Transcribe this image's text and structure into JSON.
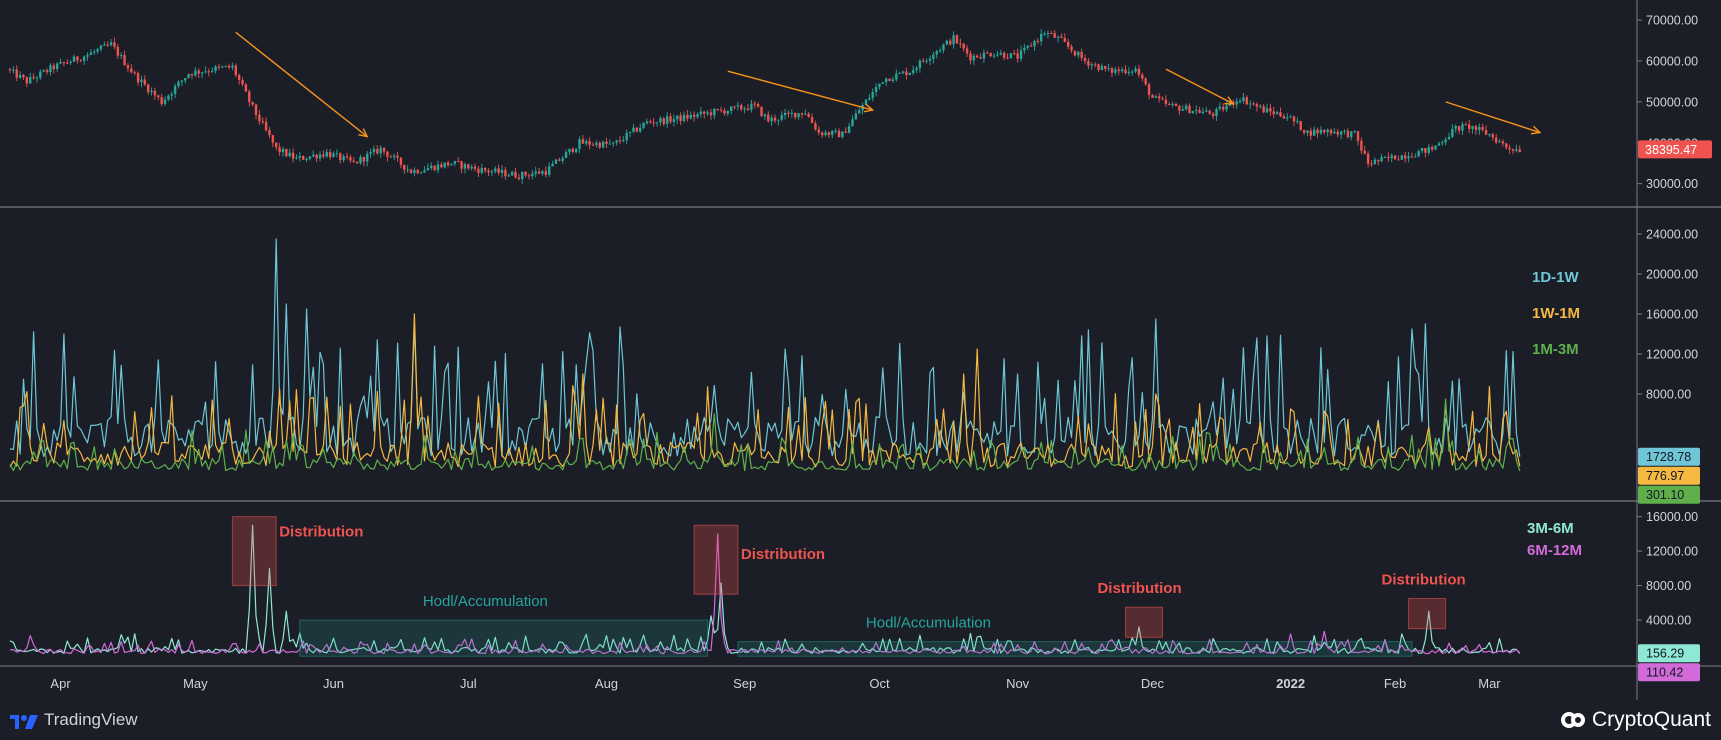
{
  "chart_data": [
    {
      "type": "candlestick",
      "panel": "price",
      "y_ticks": [
        "70000.00",
        "60000.00",
        "50000.00",
        "40000.00",
        "30000.00"
      ],
      "ylim": [
        26000,
        71000
      ],
      "last_price_label": "38395.47",
      "colors": {
        "up": "#26a69a",
        "down": "#ef5350",
        "arrow": "#f7931a"
      },
      "anchors": [
        {
          "day": 0,
          "price": 58000
        },
        {
          "day": 6,
          "price": 55000
        },
        {
          "day": 14,
          "price": 58500
        },
        {
          "day": 24,
          "price": 61500
        },
        {
          "day": 31,
          "price": 64000
        },
        {
          "day": 38,
          "price": 56500
        },
        {
          "day": 46,
          "price": 50000
        },
        {
          "day": 54,
          "price": 57000
        },
        {
          "day": 61,
          "price": 58000
        },
        {
          "day": 67,
          "price": 58500
        },
        {
          "day": 73,
          "price": 48500
        },
        {
          "day": 80,
          "price": 38500
        },
        {
          "day": 86,
          "price": 36000
        },
        {
          "day": 95,
          "price": 37500
        },
        {
          "day": 103,
          "price": 35000
        },
        {
          "day": 111,
          "price": 38500
        },
        {
          "day": 120,
          "price": 33000
        },
        {
          "day": 132,
          "price": 35000
        },
        {
          "day": 140,
          "price": 33500
        },
        {
          "day": 152,
          "price": 32000
        },
        {
          "day": 160,
          "price": 33000
        },
        {
          "day": 170,
          "price": 40000
        },
        {
          "day": 180,
          "price": 39500
        },
        {
          "day": 190,
          "price": 45000
        },
        {
          "day": 200,
          "price": 46000
        },
        {
          "day": 210,
          "price": 47500
        },
        {
          "day": 222,
          "price": 49000
        },
        {
          "day": 226,
          "price": 45500
        },
        {
          "day": 233,
          "price": 47000
        },
        {
          "day": 237,
          "price": 47500
        },
        {
          "day": 241,
          "price": 42500
        },
        {
          "day": 248,
          "price": 42000
        },
        {
          "day": 253,
          "price": 48000
        },
        {
          "day": 260,
          "price": 55500
        },
        {
          "day": 268,
          "price": 57500
        },
        {
          "day": 275,
          "price": 62000
        },
        {
          "day": 281,
          "price": 65500
        },
        {
          "day": 286,
          "price": 61000
        },
        {
          "day": 293,
          "price": 62000
        },
        {
          "day": 300,
          "price": 61000
        },
        {
          "day": 308,
          "price": 67000
        },
        {
          "day": 312,
          "price": 65500
        },
        {
          "day": 320,
          "price": 60000
        },
        {
          "day": 327,
          "price": 57500
        },
        {
          "day": 335,
          "price": 58000
        },
        {
          "day": 340,
          "price": 51000
        },
        {
          "day": 345,
          "price": 49000
        },
        {
          "day": 352,
          "price": 48000
        },
        {
          "day": 358,
          "price": 47000
        },
        {
          "day": 366,
          "price": 51000
        },
        {
          "day": 373,
          "price": 48000
        },
        {
          "day": 380,
          "price": 46500
        },
        {
          "day": 386,
          "price": 42500
        },
        {
          "day": 392,
          "price": 43000
        },
        {
          "day": 400,
          "price": 42000
        },
        {
          "day": 404,
          "price": 35000
        },
        {
          "day": 412,
          "price": 36500
        },
        {
          "day": 418,
          "price": 37500
        },
        {
          "day": 423,
          "price": 38500
        },
        {
          "day": 430,
          "price": 43500
        },
        {
          "day": 434,
          "price": 44000
        },
        {
          "day": 440,
          "price": 42000
        },
        {
          "day": 445,
          "price": 39000
        },
        {
          "day": 448,
          "price": 38400
        }
      ],
      "trend_arrows": [
        {
          "from": {
            "day": 67,
            "price": 67000
          },
          "to": {
            "day": 106,
            "price": 41500
          }
        },
        {
          "from": {
            "day": 213,
            "price": 57500
          },
          "to": {
            "day": 256,
            "price": 48000
          }
        },
        {
          "from": {
            "day": 343,
            "price": 58000
          },
          "to": {
            "day": 363,
            "price": 49500
          }
        },
        {
          "from": {
            "day": 426,
            "price": 50000
          },
          "to": {
            "day": 454,
            "price": 42500
          }
        }
      ]
    },
    {
      "type": "line",
      "panel": "short_term_spent_outputs",
      "y_ticks": [
        "24000.00",
        "20000.00",
        "16000.00",
        "12000.00",
        "8000.00"
      ],
      "ylim": [
        -2000,
        26000
      ],
      "series": [
        {
          "name": "1D-1W",
          "color": "#6ec6d6",
          "last": "1728.78",
          "base": 5000,
          "range": 4000,
          "peaks": [
            {
              "day": 79,
              "value": 23500
            },
            {
              "day": 82,
              "value": 17000
            },
            {
              "day": 88,
              "value": 16500
            },
            {
              "day": 120,
              "value": 15000
            },
            {
              "day": 340,
              "value": 15500
            },
            {
              "day": 420,
              "value": 15000
            },
            {
              "day": 16,
              "value": 14000
            },
            {
              "day": 230,
              "value": 12500
            }
          ]
        },
        {
          "name": "1W-1M",
          "color": "#f5b841",
          "last": "776.97",
          "base": 2000,
          "range": 2500,
          "peaks": [
            {
              "day": 120,
              "value": 16000
            },
            {
              "day": 80,
              "value": 8500
            },
            {
              "day": 170,
              "value": 10000
            },
            {
              "day": 287,
              "value": 12500
            },
            {
              "day": 283,
              "value": 10000
            },
            {
              "day": 340,
              "value": 8000
            }
          ]
        },
        {
          "name": "1M-3M",
          "color": "#5fb04b",
          "last": "301.10",
          "base": 1000,
          "range": 1200,
          "peaks": [
            {
              "day": 209,
              "value": 6000
            },
            {
              "day": 426,
              "value": 7500
            },
            {
              "day": 84,
              "value": 4000
            },
            {
              "day": 188,
              "value": 3500
            }
          ]
        }
      ]
    },
    {
      "type": "line",
      "panel": "mid_term_spent_outputs",
      "y_ticks": [
        "16000.00",
        "12000.00",
        "8000.00",
        "4000.00"
      ],
      "ylim": [
        -400,
        17000
      ],
      "series": [
        {
          "name": "3M-6M",
          "color": "#8fe8d6",
          "last": "156.29",
          "base": 400,
          "range": 700,
          "peaks": [
            {
              "day": 72,
              "value": 15000
            },
            {
              "day": 77,
              "value": 10000
            },
            {
              "day": 82,
              "value": 5000
            },
            {
              "day": 86,
              "value": 2500
            },
            {
              "day": 211,
              "value": 8300
            },
            {
              "day": 208,
              "value": 4500
            },
            {
              "day": 335,
              "value": 3200
            },
            {
              "day": 421,
              "value": 5000
            },
            {
              "day": 33,
              "value": 2300
            }
          ]
        },
        {
          "name": "6M-12M",
          "color": "#d36ad9",
          "last": "110.42",
          "base": 300,
          "range": 500,
          "peaks": [
            {
              "day": 210,
              "value": 14000
            },
            {
              "day": 6,
              "value": 2200
            },
            {
              "day": 137,
              "value": 1800
            },
            {
              "day": 380,
              "value": 2400
            },
            {
              "day": 390,
              "value": 2700
            }
          ]
        }
      ],
      "annotations": [
        {
          "text": "Distribution",
          "kind": "distribution",
          "box": {
            "day0": 66,
            "day1": 79,
            "v0": 8000,
            "v1": 16000
          }
        },
        {
          "text": "Distribution",
          "kind": "distribution",
          "box": {
            "day0": 203,
            "day1": 216,
            "v0": 7000,
            "v1": 15000
          }
        },
        {
          "text": "Distribution",
          "kind": "distribution",
          "box": {
            "day0": 331,
            "day1": 342,
            "v0": 2000,
            "v1": 5500
          }
        },
        {
          "text": "Distribution",
          "kind": "distribution",
          "box": {
            "day0": 415,
            "day1": 426,
            "v0": 3000,
            "v1": 6500
          }
        },
        {
          "text": "Hodl/Accumulation",
          "kind": "hodl",
          "box": {
            "day0": 86,
            "day1": 207,
            "v0": -200,
            "v1": 4000
          }
        },
        {
          "text": "Hodl/Accumulation",
          "kind": "hodl",
          "box": {
            "day0": 216,
            "day1": 416,
            "v0": -200,
            "v1": 1500
          }
        }
      ]
    }
  ],
  "x_axis": {
    "labels": [
      {
        "text": "Apr",
        "day": 15
      },
      {
        "text": "May",
        "day": 55
      },
      {
        "text": "Jun",
        "day": 96
      },
      {
        "text": "Jul",
        "day": 136
      },
      {
        "text": "Aug",
        "day": 177
      },
      {
        "text": "Sep",
        "day": 218
      },
      {
        "text": "Oct",
        "day": 258
      },
      {
        "text": "Nov",
        "day": 299
      },
      {
        "text": "Dec",
        "day": 339
      },
      {
        "text": "2022",
        "day": 380
      },
      {
        "text": "Feb",
        "day": 411
      },
      {
        "text": "Mar",
        "day": 439
      }
    ]
  },
  "branding": {
    "tradingview": "TradingView",
    "cryptoquant": "CryptoQuant"
  },
  "colors": {
    "background": "#1b1e26",
    "grid": "#2a2e39",
    "separator": "#787b86",
    "axis_text": "#d1d4dc",
    "distribution_text": "#ef5350",
    "hodl_text": "#26a69a"
  }
}
